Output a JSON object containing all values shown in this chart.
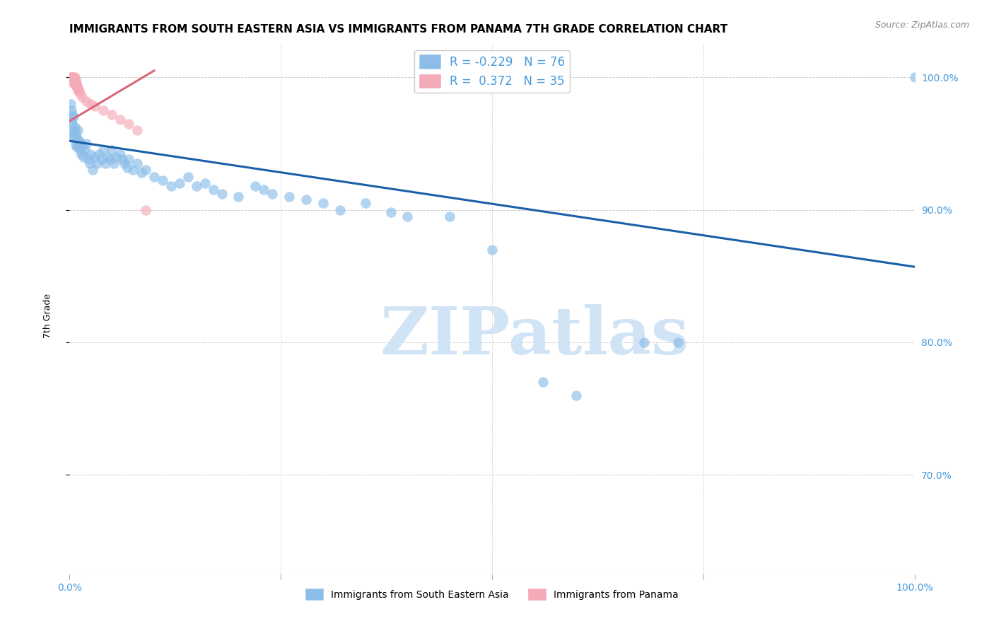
{
  "title": "IMMIGRANTS FROM SOUTH EASTERN ASIA VS IMMIGRANTS FROM PANAMA 7TH GRADE CORRELATION CHART",
  "source": "Source: ZipAtlas.com",
  "ylabel": "7th Grade",
  "legend_blue_label": "Immigrants from South Eastern Asia",
  "legend_pink_label": "Immigrants from Panama",
  "r_blue": -0.229,
  "n_blue": 76,
  "r_pink": 0.372,
  "n_pink": 35,
  "blue_color": "#8bbde8",
  "pink_color": "#f5aab8",
  "blue_line_color": "#1a5fa8",
  "pink_line_color": "#d96878",
  "watermark_color": "#d0e4f5",
  "xlim": [
    0.0,
    1.0
  ],
  "ylim": [
    0.625,
    1.025
  ],
  "yticks": [
    0.7,
    0.8,
    0.9,
    1.0
  ],
  "ytick_labels": [
    "70.0%",
    "80.0%",
    "90.0%",
    "100.0%"
  ],
  "xticks": [
    0.0,
    0.25,
    0.5,
    0.75,
    1.0
  ],
  "xtick_labels": [
    "0.0%",
    "",
    "",
    "",
    "100.0%"
  ],
  "grid_color": "#cccccc",
  "background_color": "#ffffff",
  "title_fontsize": 11,
  "source_fontsize": 9,
  "axis_label_fontsize": 9,
  "tick_fontsize": 10,
  "blue_line_x": [
    0.0,
    1.0
  ],
  "blue_line_y": [
    0.952,
    0.857
  ],
  "pink_line_x": [
    0.0,
    0.1
  ],
  "pink_line_y": [
    0.967,
    1.005
  ],
  "blue_scatter": [
    [
      0.001,
      0.98
    ],
    [
      0.002,
      0.975
    ],
    [
      0.002,
      0.968
    ],
    [
      0.003,
      0.972
    ],
    [
      0.003,
      0.965
    ],
    [
      0.004,
      0.96
    ],
    [
      0.004,
      0.955
    ],
    [
      0.005,
      0.97
    ],
    [
      0.005,
      0.958
    ],
    [
      0.006,
      0.962
    ],
    [
      0.006,
      0.955
    ],
    [
      0.007,
      0.958
    ],
    [
      0.007,
      0.95
    ],
    [
      0.008,
      0.955
    ],
    [
      0.008,
      0.948
    ],
    [
      0.009,
      0.952
    ],
    [
      0.01,
      0.96
    ],
    [
      0.01,
      0.948
    ],
    [
      0.011,
      0.952
    ],
    [
      0.012,
      0.945
    ],
    [
      0.013,
      0.95
    ],
    [
      0.014,
      0.942
    ],
    [
      0.015,
      0.948
    ],
    [
      0.016,
      0.94
    ],
    [
      0.018,
      0.945
    ],
    [
      0.02,
      0.95
    ],
    [
      0.022,
      0.938
    ],
    [
      0.024,
      0.935
    ],
    [
      0.025,
      0.942
    ],
    [
      0.027,
      0.93
    ],
    [
      0.03,
      0.94
    ],
    [
      0.032,
      0.935
    ],
    [
      0.035,
      0.942
    ],
    [
      0.038,
      0.938
    ],
    [
      0.04,
      0.945
    ],
    [
      0.042,
      0.935
    ],
    [
      0.045,
      0.94
    ],
    [
      0.048,
      0.938
    ],
    [
      0.05,
      0.945
    ],
    [
      0.052,
      0.935
    ],
    [
      0.055,
      0.94
    ],
    [
      0.06,
      0.942
    ],
    [
      0.062,
      0.938
    ],
    [
      0.065,
      0.935
    ],
    [
      0.068,
      0.932
    ],
    [
      0.07,
      0.938
    ],
    [
      0.075,
      0.93
    ],
    [
      0.08,
      0.935
    ],
    [
      0.085,
      0.928
    ],
    [
      0.09,
      0.93
    ],
    [
      0.1,
      0.925
    ],
    [
      0.11,
      0.922
    ],
    [
      0.12,
      0.918
    ],
    [
      0.13,
      0.92
    ],
    [
      0.14,
      0.925
    ],
    [
      0.15,
      0.918
    ],
    [
      0.16,
      0.92
    ],
    [
      0.17,
      0.915
    ],
    [
      0.18,
      0.912
    ],
    [
      0.2,
      0.91
    ],
    [
      0.22,
      0.918
    ],
    [
      0.23,
      0.915
    ],
    [
      0.24,
      0.912
    ],
    [
      0.26,
      0.91
    ],
    [
      0.28,
      0.908
    ],
    [
      0.3,
      0.905
    ],
    [
      0.32,
      0.9
    ],
    [
      0.35,
      0.905
    ],
    [
      0.38,
      0.898
    ],
    [
      0.4,
      0.895
    ],
    [
      0.45,
      0.895
    ],
    [
      0.5,
      0.87
    ],
    [
      0.56,
      0.77
    ],
    [
      0.6,
      0.76
    ],
    [
      0.68,
      0.8
    ],
    [
      0.72,
      0.8
    ],
    [
      1.0,
      1.0
    ]
  ],
  "pink_scatter": [
    [
      0.001,
      1.0
    ],
    [
      0.002,
      1.0
    ],
    [
      0.002,
      0.998
    ],
    [
      0.003,
      1.0
    ],
    [
      0.003,
      0.998
    ],
    [
      0.004,
      1.0
    ],
    [
      0.004,
      0.998
    ],
    [
      0.004,
      0.996
    ],
    [
      0.005,
      1.0
    ],
    [
      0.005,
      0.998
    ],
    [
      0.005,
      0.996
    ],
    [
      0.006,
      1.0
    ],
    [
      0.006,
      0.998
    ],
    [
      0.006,
      0.996
    ],
    [
      0.007,
      0.998
    ],
    [
      0.007,
      0.996
    ],
    [
      0.007,
      0.994
    ],
    [
      0.008,
      0.996
    ],
    [
      0.008,
      0.994
    ],
    [
      0.009,
      0.994
    ],
    [
      0.009,
      0.992
    ],
    [
      0.01,
      0.992
    ],
    [
      0.01,
      0.99
    ],
    [
      0.011,
      0.99
    ],
    [
      0.012,
      0.988
    ],
    [
      0.015,
      0.985
    ],
    [
      0.02,
      0.982
    ],
    [
      0.025,
      0.98
    ],
    [
      0.03,
      0.978
    ],
    [
      0.04,
      0.975
    ],
    [
      0.05,
      0.972
    ],
    [
      0.06,
      0.968
    ],
    [
      0.07,
      0.965
    ],
    [
      0.08,
      0.96
    ],
    [
      0.09,
      0.9
    ]
  ]
}
